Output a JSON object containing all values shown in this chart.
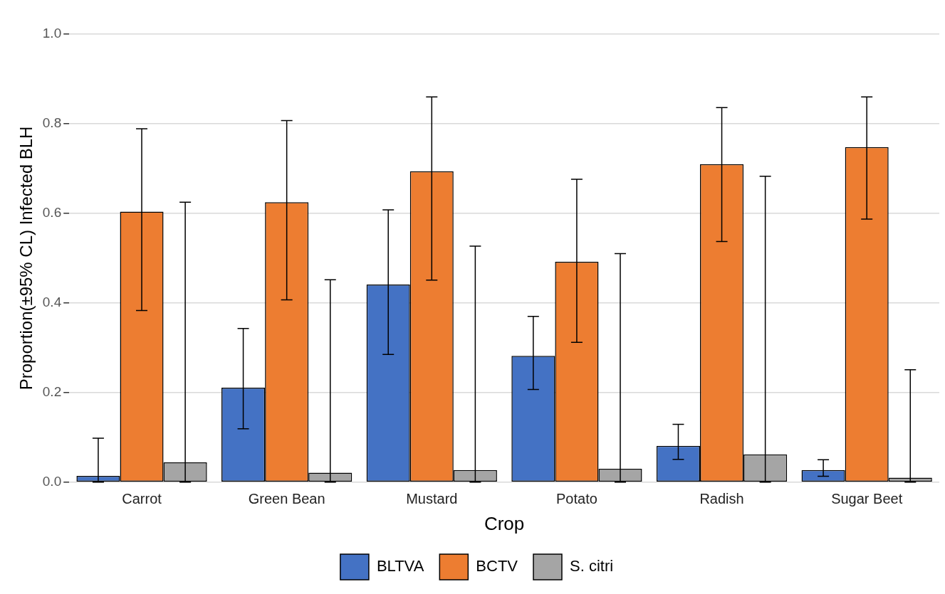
{
  "chart_data": {
    "type": "bar",
    "xlabel": "Crop",
    "ylabel": "Proportion(±95% CL) Infected BLH",
    "categories": [
      "Carrot",
      "Green Bean",
      "Mustard",
      "Potato",
      "Radish",
      "Sugar Beet"
    ],
    "series": [
      {
        "name": "BLTVA",
        "color": "#4472c4",
        "values": [
          0.014,
          0.211,
          0.441,
          0.282,
          0.081,
          0.027
        ],
        "errors": [
          [
            0,
            0.098
          ],
          [
            0.119,
            0.343
          ],
          [
            0.285,
            0.608
          ],
          [
            0.207,
            0.37
          ],
          [
            0.051,
            0.129
          ],
          [
            0.013,
            0.05
          ]
        ]
      },
      {
        "name": "BCTV",
        "color": "#ed7d31",
        "values": [
          0.604,
          0.625,
          0.694,
          0.492,
          0.71,
          0.748
        ],
        "errors": [
          [
            0.383,
            0.789
          ],
          [
            0.407,
            0.807
          ],
          [
            0.451,
            0.86
          ],
          [
            0.312,
            0.676
          ],
          [
            0.537,
            0.836
          ],
          [
            0.587,
            0.86
          ]
        ]
      },
      {
        "name": "S. citri",
        "color": "#a5a5a5",
        "values": [
          0.044,
          0.021,
          0.027,
          0.03,
          0.062,
          0.01
        ],
        "errors": [
          [
            0,
            0.625
          ],
          [
            0,
            0.452
          ],
          [
            0,
            0.527
          ],
          [
            0,
            0.51
          ],
          [
            0,
            0.683
          ],
          [
            0,
            0.251
          ]
        ]
      }
    ],
    "ylim": [
      0,
      1
    ],
    "yticks": [
      {
        "value": 0,
        "label": "0.0"
      },
      {
        "value": 0.2,
        "label": "0.2"
      },
      {
        "value": 0.4,
        "label": "0.4"
      },
      {
        "value": 0.6,
        "label": "0.6"
      },
      {
        "value": 0.8,
        "label": "0.8"
      },
      {
        "value": 1,
        "label": "1.0"
      }
    ],
    "grid": "y",
    "legend": "bottom"
  }
}
